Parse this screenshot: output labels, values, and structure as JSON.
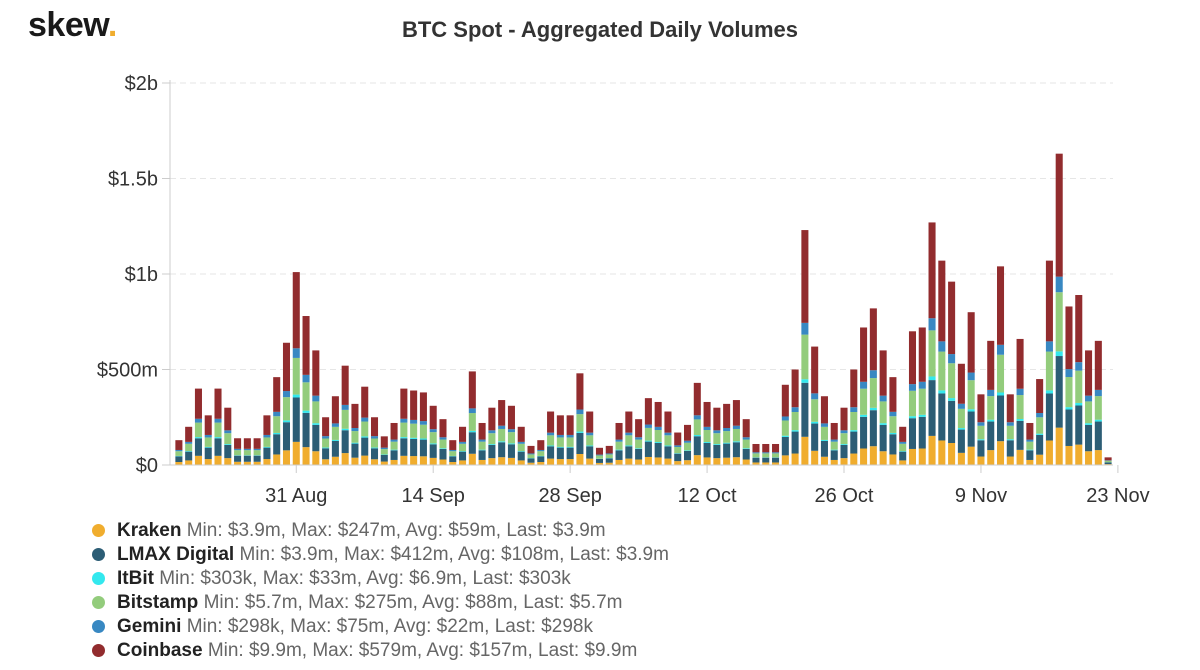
{
  "logo": {
    "text": "skew",
    "dot": "."
  },
  "chart_data": {
    "type": "stacked-bar",
    "title": "BTC Spot - Aggregated Daily Volumes",
    "ylim": [
      0,
      2000
    ],
    "yunit": "m",
    "yticks": [
      {
        "value": 0,
        "label": "$0"
      },
      {
        "value": 500,
        "label": "$500m"
      },
      {
        "value": 1000,
        "label": "$1b"
      },
      {
        "value": 1500,
        "label": "$1.5b"
      },
      {
        "value": 2000,
        "label": "$2b"
      }
    ],
    "xticks": [
      {
        "index": 12,
        "label": "31 Aug"
      },
      {
        "index": 26,
        "label": "14 Sep"
      },
      {
        "index": 40,
        "label": "28 Sep"
      },
      {
        "index": 54,
        "label": "12 Oct"
      },
      {
        "index": 68,
        "label": "26 Oct"
      },
      {
        "index": 82,
        "label": "9 Nov"
      },
      {
        "index": 96,
        "label": "23 Nov"
      }
    ],
    "totals": [
      130,
      200,
      400,
      260,
      400,
      300,
      140,
      140,
      140,
      260,
      460,
      640,
      1010,
      780,
      600,
      250,
      360,
      520,
      320,
      410,
      250,
      150,
      220,
      400,
      390,
      380,
      310,
      240,
      130,
      200,
      490,
      220,
      300,
      340,
      310,
      200,
      100,
      130,
      280,
      260,
      260,
      480,
      280,
      90,
      100,
      220,
      280,
      240,
      350,
      330,
      280,
      170,
      210,
      430,
      330,
      300,
      320,
      340,
      240,
      110,
      110,
      110,
      420,
      500,
      1230,
      620,
      360,
      220,
      300,
      500,
      720,
      820,
      600,
      460,
      200,
      700,
      720,
      1270,
      1070,
      960,
      530,
      800,
      370,
      650,
      1040,
      370,
      660,
      220,
      450,
      1070,
      1630,
      830,
      890,
      600,
      650,
      40
    ],
    "series": [
      {
        "name": "Kraken",
        "color": "#f0ad2e",
        "stats": "Min: $3.9m, Max: $247m, Avg: $59m, Last: $3.9m"
      },
      {
        "name": "LMAX Digital",
        "color": "#2c5d75",
        "stats": "Min: $3.9m, Max: $412m, Avg: $108m, Last: $3.9m"
      },
      {
        "name": "ItBit",
        "color": "#33e8ee",
        "stats": "Min: $303k, Max: $33m, Avg: $6.9m, Last: $303k"
      },
      {
        "name": "Bitstamp",
        "color": "#93cc7c",
        "stats": "Min: $5.7m, Max: $275m, Avg: $88m, Last: $5.7m"
      },
      {
        "name": "Gemini",
        "color": "#3888c2",
        "stats": "Min: $298k, Max: $75m, Avg: $22m, Last: $298k"
      },
      {
        "name": "Coinbase",
        "color": "#922c2e",
        "stats": "Min: $9.9m, Max: $579m, Avg: $157m, Last: $9.9m"
      }
    ],
    "series_shares": [
      0.12,
      0.23,
      0.015,
      0.19,
      0.05,
      0.395
    ]
  }
}
